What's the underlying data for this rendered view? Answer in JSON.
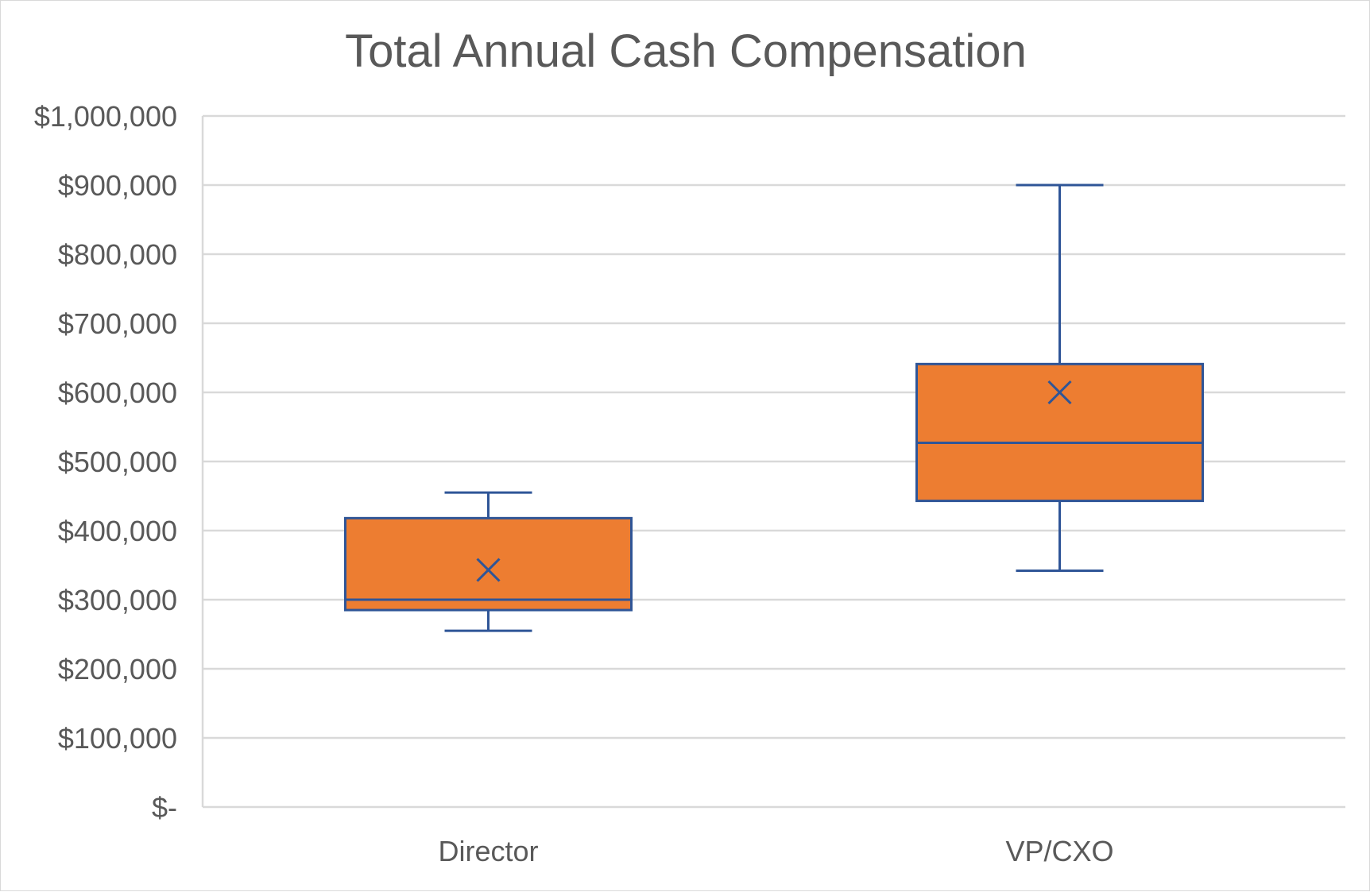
{
  "chart_data": {
    "type": "box",
    "title": "Total Annual Cash Compensation",
    "xlabel": "",
    "ylabel": "",
    "ylim": [
      0,
      1000000
    ],
    "y_tick_values": [
      0,
      100000,
      200000,
      300000,
      400000,
      500000,
      600000,
      700000,
      800000,
      900000,
      1000000
    ],
    "y_tick_labels": [
      "$-",
      "$100,000",
      "$200,000",
      "$300,000",
      "$400,000",
      "$500,000",
      "$600,000",
      "$700,000",
      "$800,000",
      "$900,000",
      "$1,000,000"
    ],
    "categories": [
      "Director",
      "VP/CXO"
    ],
    "boxes": [
      {
        "category": "Director",
        "min": 255000,
        "q1": 285000,
        "median": 300000,
        "q3": 418000,
        "max": 455000,
        "mean": 343000
      },
      {
        "category": "VP/CXO",
        "min": 342000,
        "q1": 443000,
        "median": 527000,
        "q3": 641000,
        "max": 900000,
        "mean": 600000
      }
    ],
    "grid": true,
    "legend": "none",
    "colors": {
      "box_fill": "#ED7D31",
      "box_line": "#2F5597",
      "grid": "#D9D9D9",
      "text": "#595959"
    }
  }
}
